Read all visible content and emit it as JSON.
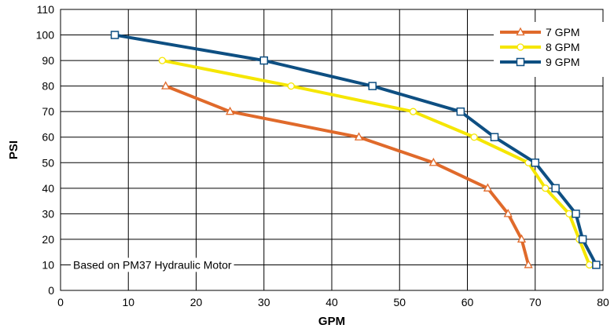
{
  "chart_data": {
    "type": "line",
    "title": "",
    "xlabel": "GPM",
    "ylabel": "PSI",
    "xlim": [
      0,
      80
    ],
    "ylim": [
      0,
      110
    ],
    "xticks": [
      0,
      10,
      20,
      30,
      40,
      50,
      60,
      70,
      80
    ],
    "yticks": [
      0,
      10,
      20,
      30,
      40,
      50,
      60,
      70,
      80,
      90,
      100,
      110
    ],
    "grid": true,
    "legend_position": "top-right",
    "annotation": "Based on PM37 Hydraulic Motor",
    "series": [
      {
        "name": "7 GPM",
        "color": "#E06A2B",
        "marker": "triangle",
        "points": [
          [
            15.5,
            80
          ],
          [
            25,
            70
          ],
          [
            44,
            60
          ],
          [
            55,
            50
          ],
          [
            63,
            40
          ],
          [
            66,
            30
          ],
          [
            68,
            20
          ],
          [
            69,
            10
          ]
        ]
      },
      {
        "name": "8 GPM",
        "color": "#F5E600",
        "marker": "circle",
        "points": [
          [
            15,
            90
          ],
          [
            34,
            80
          ],
          [
            52,
            70
          ],
          [
            61,
            60
          ],
          [
            69,
            50
          ],
          [
            71.5,
            40
          ],
          [
            75,
            30
          ],
          [
            76.5,
            20
          ],
          [
            78,
            10
          ]
        ]
      },
      {
        "name": "9 GPM",
        "color": "#0E4F82",
        "marker": "square",
        "points": [
          [
            8,
            100
          ],
          [
            30,
            90
          ],
          [
            46,
            80
          ],
          [
            59,
            70
          ],
          [
            64,
            60
          ],
          [
            70,
            50
          ],
          [
            73,
            40
          ],
          [
            76,
            30
          ],
          [
            77,
            20
          ],
          [
            79,
            10
          ]
        ]
      }
    ]
  }
}
